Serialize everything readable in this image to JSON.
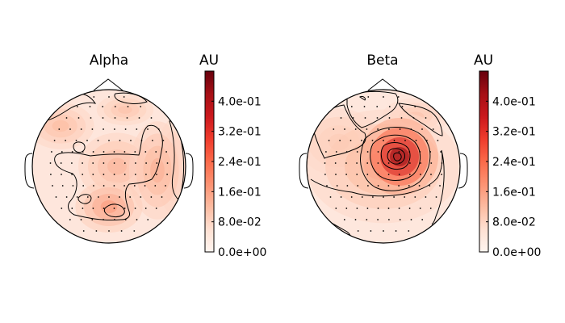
{
  "chart_data": [
    {
      "type": "heatmap",
      "subtype": "topographic-map",
      "title": "Alpha",
      "colorbar": {
        "label": "AU",
        "colormap": "Reds",
        "range": [
          0.0,
          0.48
        ],
        "ticks": [
          0.0,
          0.08,
          0.16,
          0.24,
          0.32,
          0.4
        ],
        "tick_labels": [
          "0.0e+00",
          "8.0e-02",
          "1.6e-01",
          "2.4e-01",
          "3.2e-01",
          "4.0e-01"
        ]
      },
      "contour_levels": [
        0.08,
        0.16
      ],
      "peaks": [
        {
          "location": "right-centro-parietal",
          "value": 0.14
        },
        {
          "location": "left-frontal",
          "value": 0.12
        },
        {
          "location": "midline-central",
          "value": 0.13
        },
        {
          "location": "midline-parietal",
          "value": 0.17
        },
        {
          "location": "right-frontal",
          "value": 0.11
        },
        {
          "location": "right-temporal",
          "value": 0.1
        }
      ],
      "background_value": 0.06
    },
    {
      "type": "heatmap",
      "subtype": "topographic-map",
      "title": "Beta",
      "colorbar": {
        "label": "AU",
        "colormap": "Reds",
        "range": [
          0.0,
          0.48
        ],
        "ticks": [
          0.0,
          0.08,
          0.16,
          0.24,
          0.32,
          0.4
        ],
        "tick_labels": [
          "0.0e+00",
          "8.0e-02",
          "1.6e-01",
          "2.4e-01",
          "3.2e-01",
          "4.0e-01"
        ]
      },
      "contour_levels": [
        0.08,
        0.16,
        0.24,
        0.32,
        0.4
      ],
      "peaks": [
        {
          "location": "right-central",
          "value": 0.44
        },
        {
          "location": "left-frontal",
          "value": 0.12
        },
        {
          "location": "right-frontal",
          "value": 0.11
        },
        {
          "location": "central",
          "value": 0.14
        }
      ],
      "background_value": 0.05
    }
  ],
  "colors": {
    "colormap_stops": [
      "#fff5f0",
      "#fee0d2",
      "#fcbba1",
      "#fc9272",
      "#fb6a4a",
      "#ef3b2c",
      "#cb181d",
      "#a50f15",
      "#67000d"
    ],
    "outline": "#000000"
  }
}
